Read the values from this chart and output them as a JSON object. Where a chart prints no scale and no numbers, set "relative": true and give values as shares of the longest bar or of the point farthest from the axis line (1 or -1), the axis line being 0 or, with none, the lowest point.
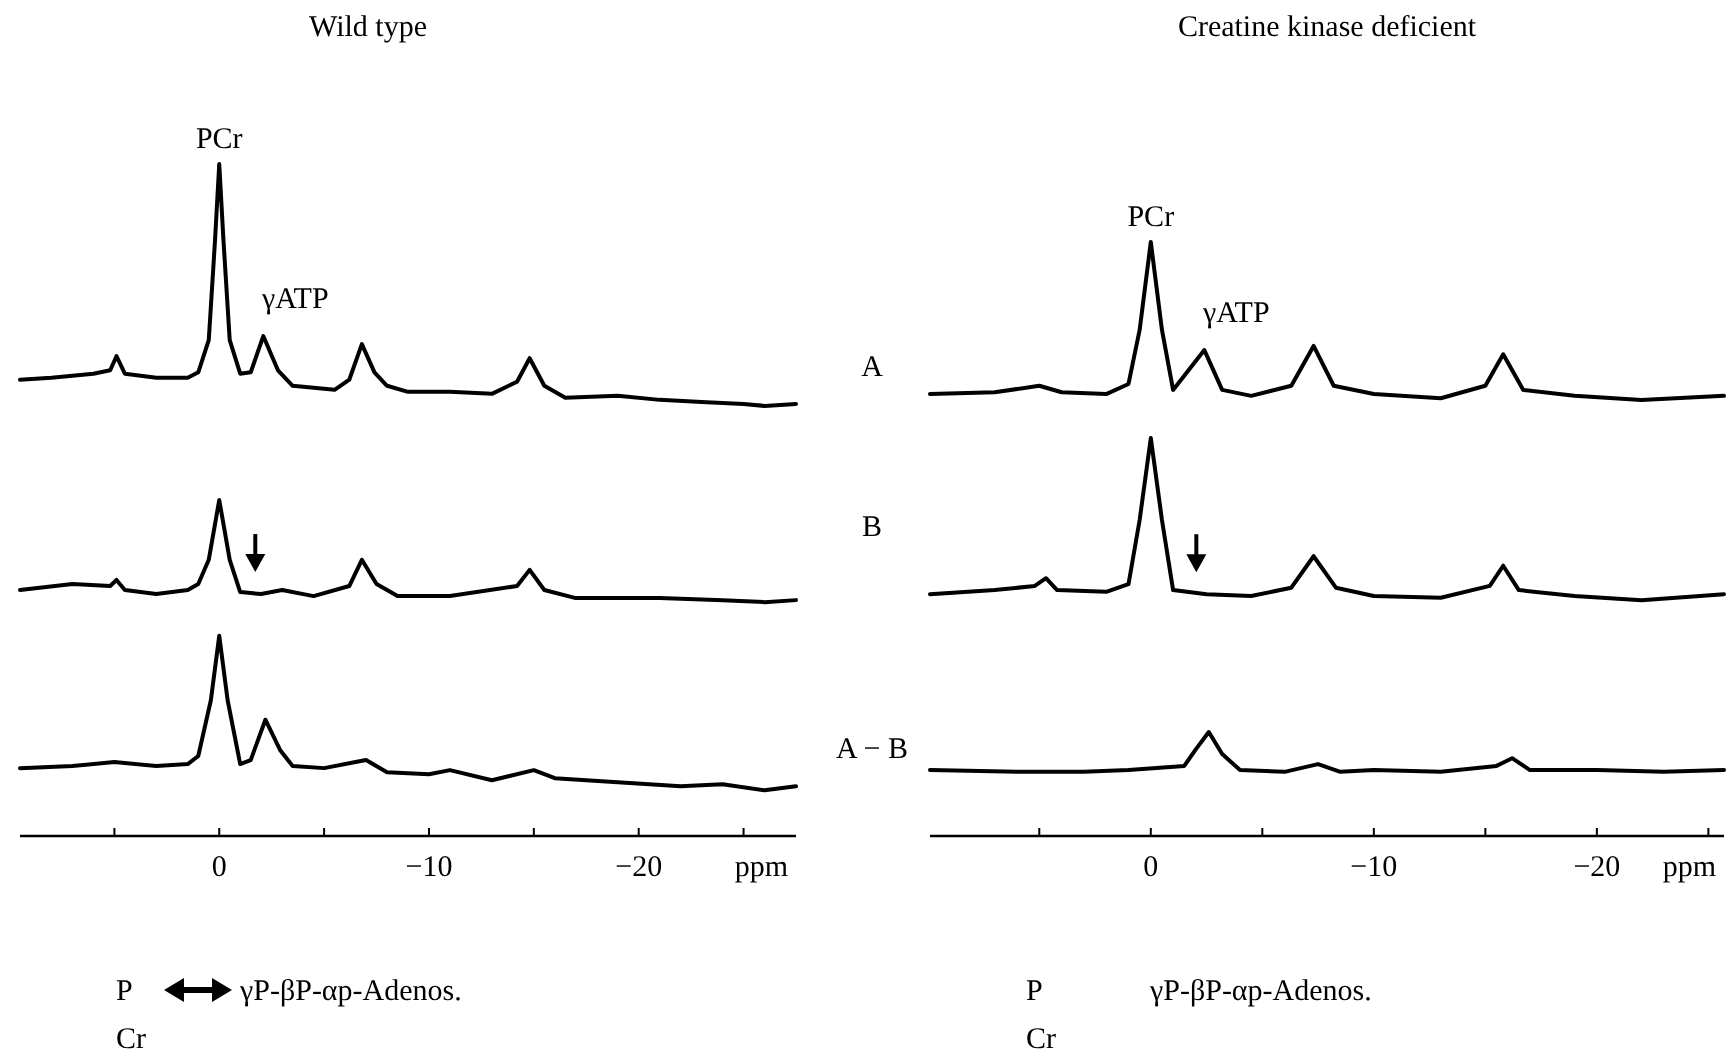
{
  "chart_data": [
    {
      "type": "line",
      "title": "Wild type",
      "relative": true,
      "tick_labels": "x",
      "xlim": [
        9.5,
        -27.5
      ],
      "xlabel": "ppm",
      "line_style": "solid",
      "marker": "none",
      "grid": false,
      "xticks": [
        {
          "value": 5,
          "label": null
        },
        0,
        {
          "value": -5,
          "label": null
        },
        {
          "value": -10,
          "label": "−10"
        },
        {
          "value": -15,
          "label": null
        },
        {
          "value": -20,
          "label": "−20"
        },
        {
          "value": -25,
          "label": null
        }
      ],
      "annotations": [
        {
          "text": "PCr",
          "x": 0,
          "y": 1
        },
        {
          "text": "γATP",
          "x": -2.1,
          "y": 0.744
        },
        "P",
        "γP-βP-αp-Adenos.",
        "Cr"
      ],
      "series": [
        {
          "name": "A",
          "color": "#000000",
          "x": [
            9.5,
            8,
            6,
            5.2,
            4.9,
            4.5,
            3,
            1.5,
            1,
            0.5,
            0.2,
            0,
            -0.2,
            -0.5,
            -1,
            -1.5,
            -2.1,
            -2.8,
            -3.5,
            -4.5,
            -5.5,
            -6.2,
            -6.8,
            -7.4,
            -8,
            -9,
            -11,
            -13,
            -14.2,
            -14.8,
            -15.5,
            -16.5,
            -19,
            -21,
            -23,
            -25,
            -26,
            -27.5
          ],
          "values": [
            0.679,
            0.682,
            0.688,
            0.693,
            0.714,
            0.688,
            0.682,
            0.682,
            0.69,
            0.738,
            0.887,
            1,
            0.887,
            0.738,
            0.688,
            0.69,
            0.744,
            0.693,
            0.67,
            0.667,
            0.664,
            0.679,
            0.732,
            0.69,
            0.67,
            0.661,
            0.661,
            0.658,
            0.676,
            0.711,
            0.67,
            0.652,
            0.655,
            0.649,
            0.646,
            0.643,
            0.64,
            0.643
          ]
        },
        {
          "name": "B",
          "color": "#000000",
          "x": [
            9.5,
            7,
            5.2,
            4.9,
            4.5,
            3,
            1.5,
            1,
            0.5,
            0,
            -0.5,
            -1,
            -2,
            -3,
            -4.5,
            -6.2,
            -6.8,
            -7.5,
            -8.5,
            -11,
            -14.2,
            -14.8,
            -15.5,
            -17,
            -21,
            -24,
            -26,
            -27.5
          ],
          "values": [
            0.366,
            0.375,
            0.372,
            0.381,
            0.366,
            0.36,
            0.366,
            0.375,
            0.411,
            0.5,
            0.411,
            0.363,
            0.36,
            0.366,
            0.357,
            0.372,
            0.411,
            0.375,
            0.357,
            0.357,
            0.372,
            0.396,
            0.366,
            0.354,
            0.354,
            0.351,
            0.348,
            0.351
          ]
        },
        {
          "name": "A − B",
          "color": "#000000",
          "x": [
            9.5,
            7,
            5,
            3,
            1.5,
            1,
            0.4,
            0,
            -0.4,
            -1,
            -1.5,
            -2.2,
            -2.9,
            -3.5,
            -5,
            -6.5,
            -7,
            -8,
            -10,
            -11,
            -13,
            -15,
            -16,
            -19,
            -22,
            -24,
            -26,
            -27.5
          ],
          "values": [
            0.101,
            0.104,
            0.11,
            0.104,
            0.107,
            0.119,
            0.202,
            0.298,
            0.202,
            0.107,
            0.113,
            0.173,
            0.128,
            0.104,
            0.101,
            0.11,
            0.113,
            0.095,
            0.092,
            0.098,
            0.083,
            0.098,
            0.086,
            0.08,
            0.074,
            0.077,
            0.068,
            0.074
          ]
        }
      ]
    },
    {
      "type": "line",
      "title": "Creatine kinase deficient",
      "relative": true,
      "tick_labels": "x",
      "xlim": [
        9.9,
        -25.7
      ],
      "xlabel": "ppm",
      "line_style": "solid",
      "marker": "none",
      "grid": false,
      "xticks": [
        {
          "value": 5,
          "label": null
        },
        0,
        {
          "value": -5,
          "label": null
        },
        {
          "value": -10,
          "label": "−10"
        },
        {
          "value": -15,
          "label": null
        },
        {
          "value": -20,
          "label": "−20"
        },
        {
          "value": -25,
          "label": null
        }
      ],
      "annotations": [
        {
          "text": "PCr",
          "x": 0,
          "y": 1
        },
        {
          "text": "γATP",
          "x": -2.4,
          "y": 0.818
        },
        "P",
        "γP-βP-αp-Adenos.",
        "Cr"
      ],
      "series": [
        {
          "color": "#000000",
          "x": [
            9.9,
            7,
            5,
            4,
            2,
            1,
            0.5,
            0,
            -0.5,
            -1,
            -2.4,
            -3.2,
            -4.5,
            -6.3,
            -7.3,
            -8.2,
            -10,
            -13,
            -15,
            -15.8,
            -16.7,
            -19,
            -22,
            -25.7
          ],
          "values": [
            0.744,
            0.747,
            0.758,
            0.747,
            0.744,
            0.761,
            0.852,
            1,
            0.852,
            0.751,
            0.818,
            0.751,
            0.741,
            0.758,
            0.825,
            0.758,
            0.744,
            0.737,
            0.758,
            0.811,
            0.751,
            0.741,
            0.734,
            0.741
          ]
        },
        {
          "color": "#000000",
          "x": [
            9.9,
            7,
            5.2,
            4.7,
            4.2,
            2,
            1,
            0.5,
            0,
            -0.5,
            -1,
            -2.5,
            -4.5,
            -6.3,
            -7.3,
            -8.3,
            -10,
            -13,
            -15.2,
            -15.8,
            -16.5,
            -19,
            -22,
            -25.7
          ],
          "values": [
            0.407,
            0.414,
            0.421,
            0.434,
            0.414,
            0.411,
            0.424,
            0.532,
            0.67,
            0.532,
            0.414,
            0.407,
            0.404,
            0.418,
            0.471,
            0.418,
            0.404,
            0.401,
            0.421,
            0.455,
            0.414,
            0.404,
            0.397,
            0.407
          ]
        },
        {
          "color": "#000000",
          "x": [
            9.9,
            6,
            3,
            1,
            -1.5,
            -2,
            -2.6,
            -3.2,
            -4,
            -6,
            -7.5,
            -8.5,
            -10,
            -13,
            -15.5,
            -16.2,
            -17,
            -20,
            -23,
            -25.7
          ],
          "values": [
            0.111,
            0.108,
            0.108,
            0.111,
            0.118,
            0.145,
            0.175,
            0.138,
            0.111,
            0.108,
            0.121,
            0.108,
            0.111,
            0.108,
            0.118,
            0.131,
            0.111,
            0.111,
            0.108,
            0.111
          ]
        }
      ]
    }
  ]
}
